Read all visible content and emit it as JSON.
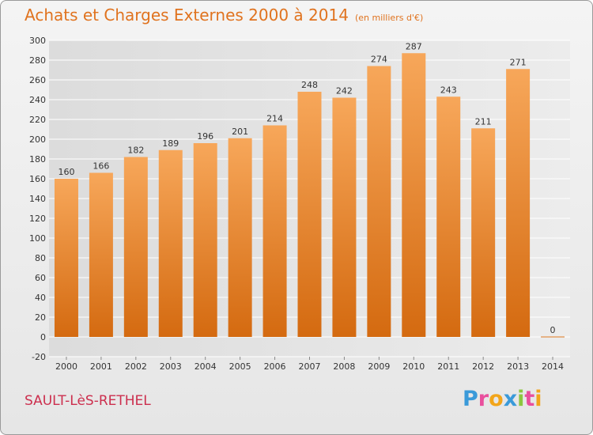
{
  "header": {
    "title": "Achats et Charges Externes 2000 à 2014",
    "subtitle": "(en milliers d'€)"
  },
  "footer": {
    "city": "SAULT-LèS-RETHEL",
    "logo_letters": [
      "P",
      "r",
      "o",
      "x",
      "i",
      "t",
      "i"
    ],
    "logo_colors": [
      "#3a9ad9",
      "#e94f9d",
      "#f2a51a",
      "#3a9ad9",
      "#8cc63f",
      "#e94f9d",
      "#f2a51a"
    ]
  },
  "chart_data": {
    "type": "bar",
    "title": "Achats et Charges Externes 2000 à 2014",
    "subtitle": "(en milliers d'€)",
    "categories": [
      "2000",
      "2001",
      "2002",
      "2003",
      "2004",
      "2005",
      "2006",
      "2007",
      "2008",
      "2009",
      "2010",
      "2011",
      "2012",
      "2013",
      "2014"
    ],
    "values": [
      160,
      166,
      182,
      189,
      196,
      201,
      214,
      248,
      242,
      274,
      287,
      243,
      211,
      271,
      0
    ],
    "ylim": [
      -20,
      300
    ],
    "yticks": [
      -20,
      0,
      20,
      40,
      60,
      80,
      100,
      120,
      140,
      160,
      180,
      200,
      220,
      240,
      260,
      280,
      300
    ],
    "grid": true,
    "bar_color_top": "#f7a75a",
    "bar_color_bottom": "#d46a10"
  }
}
